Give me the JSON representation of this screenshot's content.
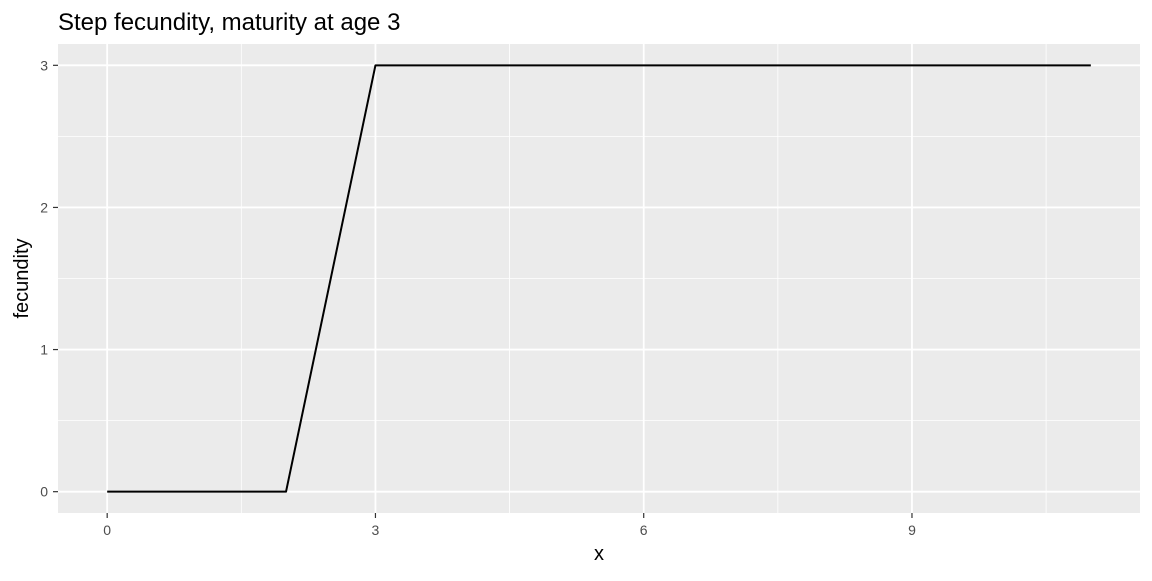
{
  "chart_data": {
    "type": "line",
    "title": "Step fecundity, maturity at age 3",
    "xlabel": "x",
    "ylabel": "fecundity",
    "x_ticks": [
      0,
      3,
      6,
      9
    ],
    "y_ticks": [
      0,
      1,
      2,
      3
    ],
    "xlim": [
      -0.55,
      11.55
    ],
    "ylim": [
      -0.15,
      3.15
    ],
    "grid": true,
    "legend": "none",
    "series": [
      {
        "x": [
          0,
          1,
          2,
          3,
          4,
          5,
          6,
          7,
          8,
          9,
          10,
          11
        ],
        "y": [
          0,
          0,
          0,
          3,
          3,
          3,
          3,
          3,
          3,
          3,
          3,
          3
        ],
        "color": "#000000"
      }
    ],
    "colors": {
      "panel_background": "#ebebeb",
      "grid_major": "#ffffff",
      "tick_label": "#4d4d4d",
      "line": "#000000"
    }
  }
}
